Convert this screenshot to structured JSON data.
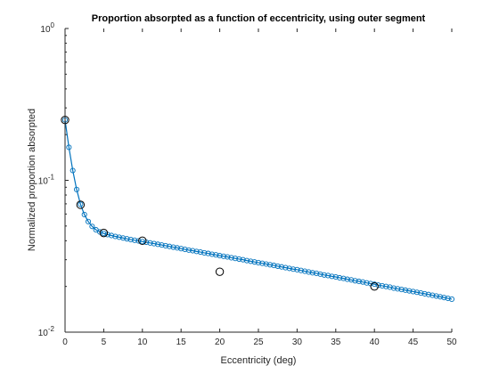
{
  "chart_data": {
    "type": "scatter",
    "title": "Proportion absorpted as a function of eccentricity, using outer segment",
    "xlabel": "Eccentricity (deg)",
    "ylabel": "Normalized proportion absorpted",
    "xlim": [
      0,
      50
    ],
    "ylim": [
      0.01,
      1
    ],
    "yscale": "log",
    "grid": false,
    "legend": "none",
    "x_ticks": [
      "0",
      "5",
      "10",
      "15",
      "20",
      "25",
      "30",
      "35",
      "40",
      "45",
      "50"
    ],
    "y_ticks": [
      {
        "base": "10",
        "exp": "0"
      },
      {
        "base": "10",
        "exp": "-1"
      },
      {
        "base": "10",
        "exp": "-2"
      }
    ],
    "series": [
      {
        "style": "line-with-circle-markers",
        "color": "#0072BD",
        "x": [
          0,
          0.5,
          1,
          1.5,
          2,
          2.5,
          3,
          3.5,
          4,
          4.5,
          5,
          5.5,
          6,
          6.5,
          7,
          7.5,
          8,
          8.5,
          9,
          9.5,
          10,
          10.5,
          11,
          11.5,
          12,
          12.5,
          13,
          13.5,
          14,
          14.5,
          15,
          15.5,
          16,
          16.5,
          17,
          17.5,
          18,
          18.5,
          19,
          19.5,
          20,
          20.5,
          21,
          21.5,
          22,
          22.5,
          23,
          23.5,
          24,
          24.5,
          25,
          25.5,
          26,
          26.5,
          27,
          27.5,
          28,
          28.5,
          29,
          29.5,
          30,
          30.5,
          31,
          31.5,
          32,
          32.5,
          33,
          33.5,
          34,
          34.5,
          35,
          35.5,
          36,
          36.5,
          37,
          37.5,
          38,
          38.5,
          39,
          39.5,
          40,
          40.5,
          41,
          41.5,
          42,
          42.5,
          43,
          43.5,
          44,
          44.5,
          45,
          45.5,
          46,
          46.5,
          47,
          47.5,
          48,
          48.5,
          49,
          49.5,
          50
        ],
        "y": [
          0.25,
          0.165,
          0.116,
          0.087,
          0.0695,
          0.0595,
          0.0535,
          0.0497,
          0.0472,
          0.0457,
          0.0447,
          0.0439,
          0.0433,
          0.0427,
          0.0422,
          0.0417,
          0.0412,
          0.0407,
          0.0403,
          0.0399,
          0.0395,
          0.0391,
          0.0387,
          0.0383,
          0.0379,
          0.0375,
          0.0371,
          0.0367,
          0.0363,
          0.0359,
          0.0355,
          0.0351,
          0.0347,
          0.0344,
          0.034,
          0.0337,
          0.0333,
          0.033,
          0.0326,
          0.0323,
          0.0319,
          0.0316,
          0.0313,
          0.0309,
          0.0306,
          0.0303,
          0.03,
          0.0296,
          0.0293,
          0.029,
          0.0287,
          0.0284,
          0.0281,
          0.0278,
          0.0275,
          0.0272,
          0.0269,
          0.0266,
          0.0263,
          0.026,
          0.0258,
          0.0255,
          0.0252,
          0.0249,
          0.0246,
          0.0244,
          0.0241,
          0.0238,
          0.0236,
          0.0233,
          0.0231,
          0.0228,
          0.0226,
          0.0223,
          0.0221,
          0.0218,
          0.0216,
          0.0214,
          0.0211,
          0.0209,
          0.0207,
          0.0204,
          0.0202,
          0.02,
          0.0198,
          0.0195,
          0.0193,
          0.0191,
          0.0189,
          0.0187,
          0.0185,
          0.0183,
          0.0181,
          0.0179,
          0.0177,
          0.0175,
          0.0173,
          0.0171,
          0.0169,
          0.0167,
          0.0165
        ]
      },
      {
        "style": "open-circle-markers",
        "color": "#000000",
        "x": [
          0,
          2,
          5,
          10,
          20,
          40
        ],
        "y": [
          0.25,
          0.069,
          0.045,
          0.04,
          0.025,
          0.02
        ]
      }
    ]
  }
}
